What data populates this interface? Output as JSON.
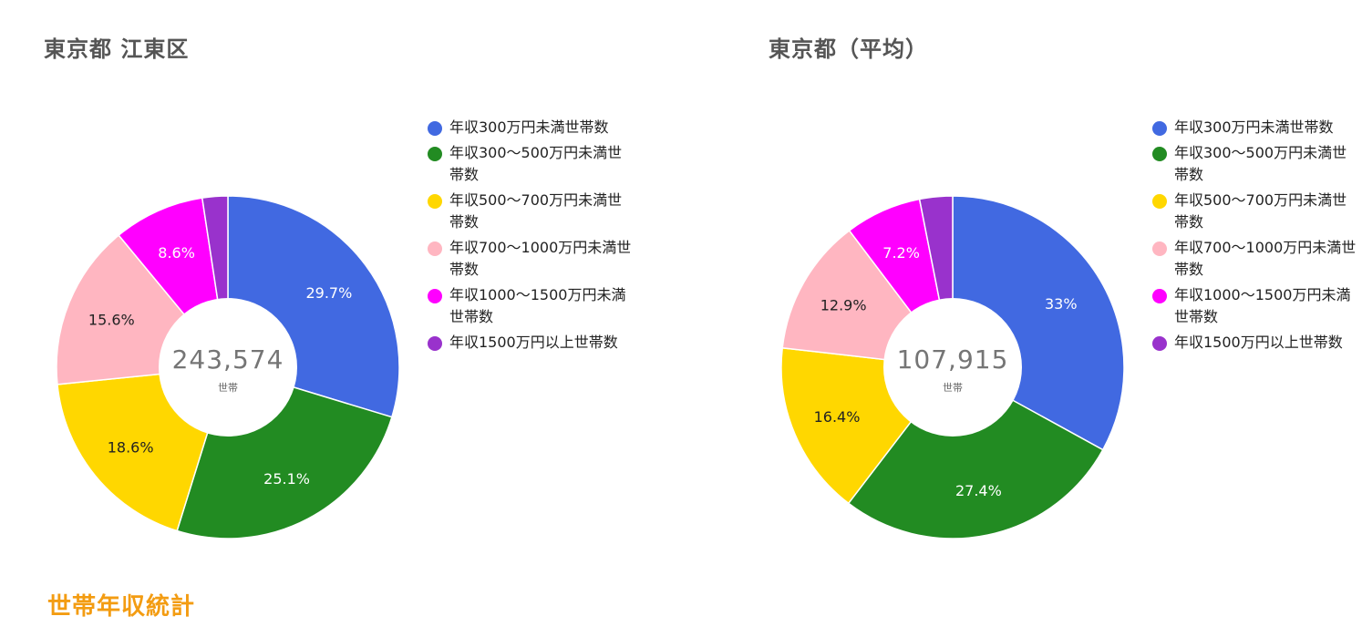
{
  "legend_labels": [
    "年収300万円未満世帯数",
    "年収300～500万円未満世帯数",
    "年収500～700万円未満世帯数",
    "年収700～1000万円未満世帯数",
    "年収1000～1500万円未満世帯数",
    "年収1500万円以上世帯数"
  ],
  "colors": [
    "#4169e1",
    "#228b22",
    "#ffd700",
    "#ffb6c1",
    "#ff00ff",
    "#9932cc"
  ],
  "chart_data": [
    {
      "type": "pie",
      "title": "東京都 江東区",
      "center_total": "243,574",
      "center_unit": "世帯",
      "categories": [
        "年収300万円未満世帯数",
        "年収300～500万円未満世帯数",
        "年収500～700万円未満世帯数",
        "年収700～1000万円未満世帯数",
        "年収1000～1500万円未満世帯数",
        "年収1500万円以上世帯数"
      ],
      "values": [
        29.7,
        25.1,
        18.6,
        15.6,
        8.6,
        2.4
      ],
      "labels": [
        "29.7%",
        "25.1%",
        "18.6%",
        "15.6%",
        "8.6%",
        ""
      ],
      "legend": "right"
    },
    {
      "type": "pie",
      "title": "東京都（平均）",
      "center_total": "107,915",
      "center_unit": "世帯",
      "categories": [
        "年収300万円未満世帯数",
        "年収300～500万円未満世帯数",
        "年収500～700万円未満世帯数",
        "年収700～1000万円未満世帯数",
        "年収1000～1500万円未満世帯数",
        "年収1500万円以上世帯数"
      ],
      "values": [
        33,
        27.4,
        16.4,
        12.9,
        7.2,
        3.1
      ],
      "labels": [
        "33%",
        "27.4%",
        "16.4%",
        "12.9%",
        "7.2%",
        ""
      ],
      "legend": "right"
    }
  ],
  "footer": {
    "title": "世帯年収統計"
  }
}
